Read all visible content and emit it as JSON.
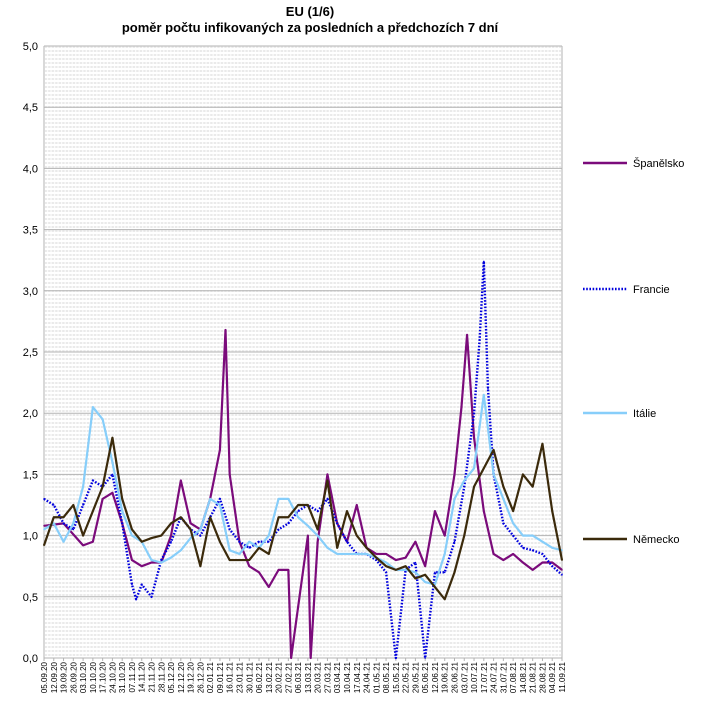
{
  "chart_data": {
    "type": "line",
    "title": "EU (1/6)",
    "subtitle": "poměr počtu infikovaných za posledních a předchozích 7 dní",
    "xlabel": "",
    "ylabel": "",
    "ylim": [
      0,
      5
    ],
    "yticks": [
      "0,0",
      "0,5",
      "1,0",
      "1,5",
      "2,0",
      "2,5",
      "3,0",
      "3,5",
      "4,0",
      "4,5",
      "5,0"
    ],
    "grid": true,
    "legend_position": "right",
    "x_start_date": "05.09.20",
    "x_tick_step_days": 7,
    "x_tick_labels": [
      "05.09.20",
      "12.09.20",
      "19.09.20",
      "26.09.20",
      "03.10.20",
      "10.10.20",
      "17.10.20",
      "24.10.20",
      "31.10.20",
      "07.11.20",
      "14.11.20",
      "21.11.20",
      "28.11.20",
      "05.12.20",
      "12.12.20",
      "19.12.20",
      "26.12.20",
      "02.01.21",
      "09.01.21",
      "16.01.21",
      "23.01.21",
      "30.01.21",
      "06.02.21",
      "13.02.21",
      "20.02.21",
      "27.02.21",
      "06.03.21",
      "13.03.21",
      "20.03.21",
      "27.03.21",
      "03.04.21",
      "10.04.21",
      "17.04.21",
      "24.04.21",
      "01.05.21",
      "08.05.21",
      "15.05.21",
      "22.05.21",
      "29.05.21",
      "05.06.21",
      "12.06.21",
      "19.06.21",
      "26.06.21",
      "03.07.21",
      "10.07.21",
      "17.07.21",
      "24.07.21",
      "31.07.21",
      "07.08.21",
      "14.08.21",
      "21.08.21",
      "28.08.21",
      "04.09.21",
      "11.09.21"
    ],
    "series": [
      {
        "name": "Španělsko",
        "color": "#7b0b7b",
        "style": "solid",
        "points": [
          [
            "05.09.20",
            1.08
          ],
          [
            "19.09.20",
            1.1
          ],
          [
            "03.10.20",
            0.92
          ],
          [
            "10.10.20",
            0.95
          ],
          [
            "17.10.20",
            1.3
          ],
          [
            "24.10.20",
            1.35
          ],
          [
            "31.10.20",
            1.1
          ],
          [
            "07.11.20",
            0.8
          ],
          [
            "14.11.20",
            0.75
          ],
          [
            "21.11.20",
            0.78
          ],
          [
            "28.11.20",
            0.78
          ],
          [
            "05.12.20",
            1.0
          ],
          [
            "12.12.20",
            1.45
          ],
          [
            "19.12.20",
            1.1
          ],
          [
            "26.12.20",
            1.05
          ],
          [
            "02.01.21",
            1.3
          ],
          [
            "09.01.21",
            1.7
          ],
          [
            "13.01.21",
            2.68
          ],
          [
            "16.01.21",
            1.5
          ],
          [
            "23.01.21",
            0.95
          ],
          [
            "30.01.21",
            0.75
          ],
          [
            "06.02.21",
            0.7
          ],
          [
            "13.02.21",
            0.58
          ],
          [
            "20.02.21",
            0.72
          ],
          [
            "27.02.21",
            0.72
          ],
          [
            "01.03.21",
            0.0
          ],
          [
            "13.03.21",
            1.0
          ],
          [
            "15.03.21",
            0.0
          ],
          [
            "20.03.21",
            0.95
          ],
          [
            "27.03.21",
            1.5
          ],
          [
            "03.04.21",
            1.1
          ],
          [
            "10.04.21",
            0.95
          ],
          [
            "17.04.21",
            1.25
          ],
          [
            "24.04.21",
            0.9
          ],
          [
            "01.05.21",
            0.85
          ],
          [
            "08.05.21",
            0.85
          ],
          [
            "15.05.21",
            0.8
          ],
          [
            "22.05.21",
            0.82
          ],
          [
            "29.05.21",
            0.95
          ],
          [
            "05.06.21",
            0.75
          ],
          [
            "12.06.21",
            1.2
          ],
          [
            "19.06.21",
            1.0
          ],
          [
            "26.06.21",
            1.5
          ],
          [
            "01.07.21",
            2.05
          ],
          [
            "05.07.21",
            2.64
          ],
          [
            "10.07.21",
            1.8
          ],
          [
            "17.07.21",
            1.2
          ],
          [
            "24.07.21",
            0.85
          ],
          [
            "31.07.21",
            0.8
          ],
          [
            "07.08.21",
            0.85
          ],
          [
            "14.08.21",
            0.78
          ],
          [
            "21.08.21",
            0.72
          ],
          [
            "28.08.21",
            0.78
          ],
          [
            "04.09.21",
            0.78
          ],
          [
            "11.09.21",
            0.72
          ]
        ]
      },
      {
        "name": "Francie",
        "color": "#0000dd",
        "style": "dotted",
        "points": [
          [
            "05.09.20",
            1.3
          ],
          [
            "12.09.20",
            1.25
          ],
          [
            "19.09.20",
            1.1
          ],
          [
            "26.09.20",
            1.05
          ],
          [
            "03.10.20",
            1.25
          ],
          [
            "10.10.20",
            1.45
          ],
          [
            "17.10.20",
            1.4
          ],
          [
            "24.10.20",
            1.5
          ],
          [
            "31.10.20",
            1.1
          ],
          [
            "07.11.20",
            0.6
          ],
          [
            "10.11.20",
            0.48
          ],
          [
            "14.11.20",
            0.6
          ],
          [
            "21.11.20",
            0.5
          ],
          [
            "28.11.20",
            0.8
          ],
          [
            "05.12.20",
            0.95
          ],
          [
            "12.12.20",
            1.15
          ],
          [
            "19.12.20",
            1.05
          ],
          [
            "26.12.20",
            1.0
          ],
          [
            "02.01.21",
            1.15
          ],
          [
            "09.01.21",
            1.3
          ],
          [
            "16.01.21",
            1.05
          ],
          [
            "23.01.21",
            0.95
          ],
          [
            "30.01.21",
            0.9
          ],
          [
            "06.02.21",
            0.95
          ],
          [
            "13.02.21",
            0.95
          ],
          [
            "20.02.21",
            1.05
          ],
          [
            "27.02.21",
            1.1
          ],
          [
            "06.03.21",
            1.2
          ],
          [
            "13.03.21",
            1.25
          ],
          [
            "20.03.21",
            1.2
          ],
          [
            "27.03.21",
            1.3
          ],
          [
            "03.04.21",
            1.1
          ],
          [
            "10.04.21",
            0.95
          ],
          [
            "17.04.21",
            0.85
          ],
          [
            "24.04.21",
            0.85
          ],
          [
            "01.05.21",
            0.8
          ],
          [
            "08.05.21",
            0.7
          ],
          [
            "15.05.21",
            0.0
          ],
          [
            "22.05.21",
            0.72
          ],
          [
            "29.05.21",
            0.78
          ],
          [
            "05.06.21",
            0.0
          ],
          [
            "12.06.21",
            0.7
          ],
          [
            "19.06.21",
            0.7
          ],
          [
            "26.06.21",
            0.95
          ],
          [
            "03.07.21",
            1.4
          ],
          [
            "10.07.21",
            2.0
          ],
          [
            "14.07.21",
            2.6
          ],
          [
            "17.07.21",
            3.24
          ],
          [
            "20.07.21",
            2.2
          ],
          [
            "24.07.21",
            1.5
          ],
          [
            "31.07.21",
            1.1
          ],
          [
            "07.08.21",
            1.0
          ],
          [
            "14.08.21",
            0.9
          ],
          [
            "21.08.21",
            0.88
          ],
          [
            "28.08.21",
            0.85
          ],
          [
            "04.09.21",
            0.75
          ],
          [
            "11.09.21",
            0.68
          ]
        ]
      },
      {
        "name": "Itálie",
        "color": "#87cefa",
        "style": "solid",
        "points": [
          [
            "05.09.20",
            1.05
          ],
          [
            "12.09.20",
            1.1
          ],
          [
            "19.09.20",
            0.95
          ],
          [
            "26.09.20",
            1.1
          ],
          [
            "03.10.20",
            1.4
          ],
          [
            "10.10.20",
            2.05
          ],
          [
            "17.10.20",
            1.95
          ],
          [
            "24.10.20",
            1.6
          ],
          [
            "31.10.20",
            1.2
          ],
          [
            "07.11.20",
            1.0
          ],
          [
            "14.11.20",
            0.95
          ],
          [
            "21.11.20",
            0.8
          ],
          [
            "28.11.20",
            0.78
          ],
          [
            "05.12.20",
            0.82
          ],
          [
            "12.12.20",
            0.88
          ],
          [
            "19.12.20",
            0.98
          ],
          [
            "26.12.20",
            1.05
          ],
          [
            "02.01.21",
            1.3
          ],
          [
            "09.01.21",
            1.25
          ],
          [
            "16.01.21",
            0.88
          ],
          [
            "23.01.21",
            0.85
          ],
          [
            "30.01.21",
            0.95
          ],
          [
            "06.02.21",
            0.9
          ],
          [
            "13.02.21",
            1.0
          ],
          [
            "20.02.21",
            1.3
          ],
          [
            "27.02.21",
            1.3
          ],
          [
            "06.03.21",
            1.15
          ],
          [
            "13.03.21",
            1.08
          ],
          [
            "20.03.21",
            1.0
          ],
          [
            "27.03.21",
            0.9
          ],
          [
            "03.04.21",
            0.85
          ],
          [
            "10.04.21",
            0.85
          ],
          [
            "17.04.21",
            0.85
          ],
          [
            "24.04.21",
            0.85
          ],
          [
            "01.05.21",
            0.82
          ],
          [
            "08.05.21",
            0.78
          ],
          [
            "15.05.21",
            0.72
          ],
          [
            "22.05.21",
            0.72
          ],
          [
            "29.05.21",
            0.7
          ],
          [
            "05.06.21",
            0.62
          ],
          [
            "12.06.21",
            0.6
          ],
          [
            "19.06.21",
            0.85
          ],
          [
            "26.06.21",
            1.3
          ],
          [
            "03.07.21",
            1.45
          ],
          [
            "10.07.21",
            1.55
          ],
          [
            "17.07.21",
            2.15
          ],
          [
            "24.07.21",
            1.5
          ],
          [
            "31.07.21",
            1.3
          ],
          [
            "07.08.21",
            1.1
          ],
          [
            "14.08.21",
            1.0
          ],
          [
            "21.08.21",
            1.0
          ],
          [
            "28.08.21",
            0.95
          ],
          [
            "04.09.21",
            0.9
          ],
          [
            "11.09.21",
            0.88
          ]
        ]
      },
      {
        "name": "Německo",
        "color": "#3b2a0b",
        "style": "solid",
        "points": [
          [
            "05.09.20",
            0.92
          ],
          [
            "12.09.20",
            1.15
          ],
          [
            "19.09.20",
            1.15
          ],
          [
            "26.09.20",
            1.25
          ],
          [
            "03.10.20",
            1.0
          ],
          [
            "10.10.20",
            1.2
          ],
          [
            "17.10.20",
            1.4
          ],
          [
            "24.10.20",
            1.8
          ],
          [
            "31.10.20",
            1.3
          ],
          [
            "07.11.20",
            1.05
          ],
          [
            "14.11.20",
            0.95
          ],
          [
            "21.11.20",
            0.98
          ],
          [
            "28.11.20",
            1.0
          ],
          [
            "05.12.20",
            1.1
          ],
          [
            "12.12.20",
            1.15
          ],
          [
            "19.12.20",
            1.05
          ],
          [
            "26.12.20",
            0.75
          ],
          [
            "02.01.21",
            1.15
          ],
          [
            "09.01.21",
            0.95
          ],
          [
            "16.01.21",
            0.8
          ],
          [
            "23.01.21",
            0.8
          ],
          [
            "30.01.21",
            0.8
          ],
          [
            "06.02.21",
            0.9
          ],
          [
            "13.02.21",
            0.85
          ],
          [
            "20.02.21",
            1.15
          ],
          [
            "27.02.21",
            1.15
          ],
          [
            "06.03.21",
            1.25
          ],
          [
            "13.03.21",
            1.25
          ],
          [
            "20.03.21",
            1.05
          ],
          [
            "27.03.21",
            1.45
          ],
          [
            "03.04.21",
            0.9
          ],
          [
            "10.04.21",
            1.2
          ],
          [
            "17.04.21",
            1.0
          ],
          [
            "24.04.21",
            0.9
          ],
          [
            "01.05.21",
            0.82
          ],
          [
            "08.05.21",
            0.75
          ],
          [
            "15.05.21",
            0.72
          ],
          [
            "22.05.21",
            0.75
          ],
          [
            "29.05.21",
            0.65
          ],
          [
            "05.06.21",
            0.68
          ],
          [
            "12.06.21",
            0.58
          ],
          [
            "19.06.21",
            0.48
          ],
          [
            "26.06.21",
            0.7
          ],
          [
            "03.07.21",
            1.0
          ],
          [
            "10.07.21",
            1.4
          ],
          [
            "17.07.21",
            1.55
          ],
          [
            "24.07.21",
            1.7
          ],
          [
            "31.07.21",
            1.4
          ],
          [
            "07.08.21",
            1.2
          ],
          [
            "14.08.21",
            1.5
          ],
          [
            "21.08.21",
            1.4
          ],
          [
            "28.08.21",
            1.75
          ],
          [
            "04.09.21",
            1.2
          ],
          [
            "11.09.21",
            0.8
          ]
        ]
      }
    ]
  }
}
